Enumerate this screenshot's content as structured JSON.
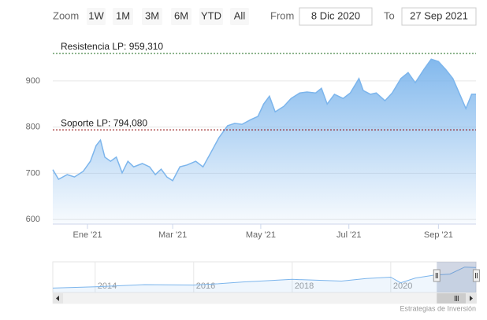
{
  "chart_data": {
    "type": "area",
    "color": "#7cb5ec",
    "range_selector": {
      "zoom_label": "Zoom",
      "buttons": [
        "1W",
        "1M",
        "3M",
        "6M",
        "YTD",
        "All"
      ],
      "from_label": "From",
      "from": "8 Dic 2020",
      "to_label": "To",
      "to": "27 Sep 2021"
    },
    "x": [
      "2020-12-08",
      "2020-12-12",
      "2020-12-18",
      "2020-12-23",
      "2020-12-29",
      "2021-01-03",
      "2021-01-07",
      "2021-01-10",
      "2021-01-13",
      "2021-01-17",
      "2021-01-21",
      "2021-01-25",
      "2021-01-29",
      "2021-02-02",
      "2021-02-08",
      "2021-02-13",
      "2021-02-17",
      "2021-02-21",
      "2021-02-25",
      "2021-03-01",
      "2021-03-06",
      "2021-03-11",
      "2021-03-17",
      "2021-03-22",
      "2021-03-28",
      "2021-04-02",
      "2021-04-08",
      "2021-04-13",
      "2021-04-18",
      "2021-04-24",
      "2021-04-29",
      "2021-05-03",
      "2021-05-07",
      "2021-05-11",
      "2021-05-17",
      "2021-05-22",
      "2021-05-28",
      "2021-06-02",
      "2021-06-08",
      "2021-06-12",
      "2021-06-16",
      "2021-06-21",
      "2021-06-27",
      "2021-07-02",
      "2021-07-08",
      "2021-07-11",
      "2021-07-16",
      "2021-07-20",
      "2021-07-26",
      "2021-07-31",
      "2021-08-06",
      "2021-08-11",
      "2021-08-16",
      "2021-08-22",
      "2021-08-27",
      "2021-09-01",
      "2021-09-06",
      "2021-09-11",
      "2021-09-17",
      "2021-09-20",
      "2021-09-24",
      "2021-09-27"
    ],
    "values": [
      708,
      687,
      697,
      692,
      704,
      726,
      760,
      772,
      735,
      726,
      735,
      701,
      726,
      714,
      721,
      714,
      697,
      709,
      692,
      684,
      714,
      718,
      726,
      714,
      748,
      777,
      803,
      808,
      806,
      816,
      823,
      850,
      867,
      833,
      845,
      862,
      874,
      876,
      874,
      884,
      850,
      871,
      862,
      874,
      905,
      879,
      871,
      874,
      857,
      874,
      905,
      918,
      896,
      925,
      947,
      942,
      925,
      905,
      862,
      840,
      871,
      871
    ],
    "xlim": [
      "2020-12-08",
      "2021-09-27"
    ],
    "xticks": [
      {
        "value": "2021-01-01",
        "label": "Ene '21"
      },
      {
        "value": "2021-03-01",
        "label": "Mar '21"
      },
      {
        "value": "2021-05-01",
        "label": "May '21"
      },
      {
        "value": "2021-07-01",
        "label": "Jul '21"
      },
      {
        "value": "2021-09-01",
        "label": "Sep '21"
      }
    ],
    "ylim": [
      590,
      990
    ],
    "yticks": [
      600,
      700,
      800,
      900
    ],
    "grid": true,
    "plot_lines": [
      {
        "value": 959.31,
        "label": "Resistencia LP: 959,310",
        "color": "#1e6b1e"
      },
      {
        "value": 794.08,
        "label": "Soporte LP: 794,080",
        "color": "#8b0000"
      }
    ],
    "navigator": {
      "x": [
        2013.14,
        2014,
        2015,
        2016,
        2016.5,
        2017,
        2017.5,
        2018,
        2018.5,
        2019,
        2019.5,
        2020,
        2020.2,
        2020.5,
        2020.9,
        2021.2,
        2021.5,
        2021.73
      ],
      "values": [
        400,
        430,
        480,
        470,
        500,
        540,
        570,
        600,
        580,
        560,
        620,
        650,
        520,
        630,
        700,
        720,
        880,
        870
      ],
      "xlim": [
        2013.14,
        2021.73
      ],
      "ylim": [
        300,
        1000
      ],
      "xticks": [
        2014,
        2016,
        2018,
        2020
      ]
    },
    "credits": "Estrategias de Inversión"
  }
}
